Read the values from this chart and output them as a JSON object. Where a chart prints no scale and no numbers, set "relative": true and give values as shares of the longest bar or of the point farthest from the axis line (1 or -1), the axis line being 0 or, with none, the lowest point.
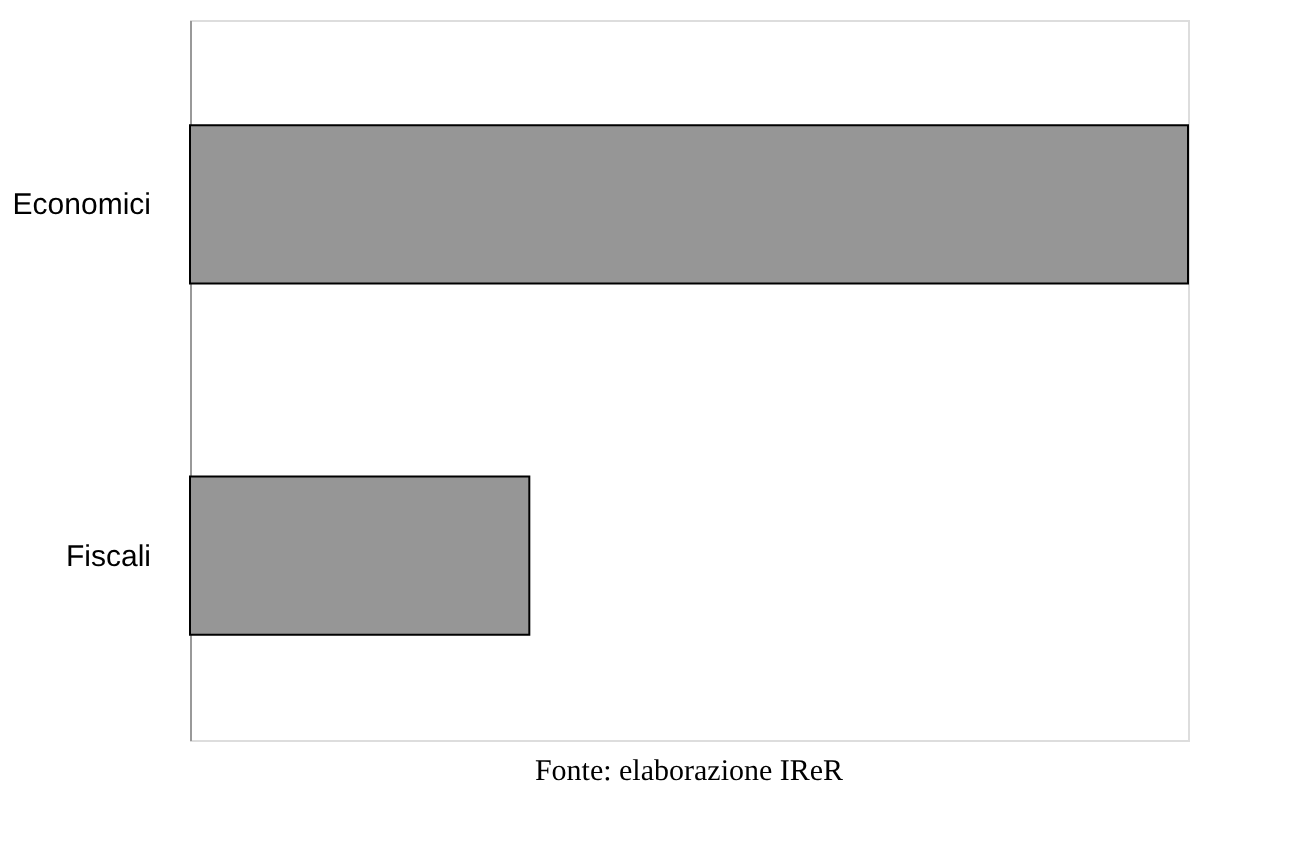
{
  "chart_data": {
    "type": "bar",
    "orientation": "horizontal",
    "relative": true,
    "categories": [
      "Economici",
      "Fiscali"
    ],
    "values": [
      1,
      0.34
    ],
    "color": "#969696",
    "annotations": [
      "Fonte: elaborazione IReR"
    ]
  }
}
